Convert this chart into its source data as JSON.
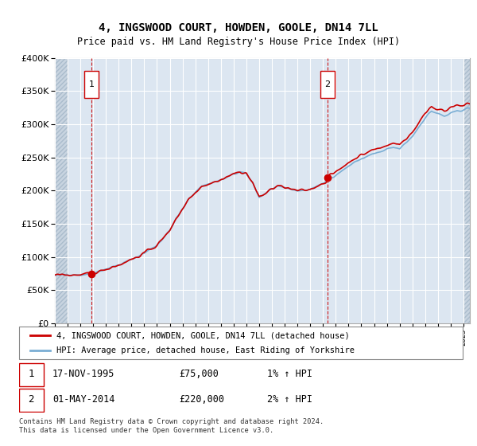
{
  "title": "4, INGSWOOD COURT, HOWDEN, GOOLE, DN14 7LL",
  "subtitle": "Price paid vs. HM Land Registry's House Price Index (HPI)",
  "sale1_year": 1995.875,
  "sale1_price": 75000,
  "sale2_year": 2014.333,
  "sale2_price": 220000,
  "legend_line1": "4, INGSWOOD COURT, HOWDEN, GOOLE, DN14 7LL (detached house)",
  "legend_line2": "HPI: Average price, detached house, East Riding of Yorkshire",
  "footer": "Contains HM Land Registry data © Crown copyright and database right 2024.\nThis data is licensed under the Open Government Licence v3.0.",
  "price_line_color": "#cc0000",
  "hpi_line_color": "#7aaed4",
  "background_color": "#dce6f1",
  "hatch_color": "#c8d4e0",
  "ylim": [
    0,
    400000
  ],
  "yticks": [
    0,
    50000,
    100000,
    150000,
    200000,
    250000,
    300000,
    350000,
    400000
  ],
  "xmin": 1993.0,
  "xmax": 2025.5
}
